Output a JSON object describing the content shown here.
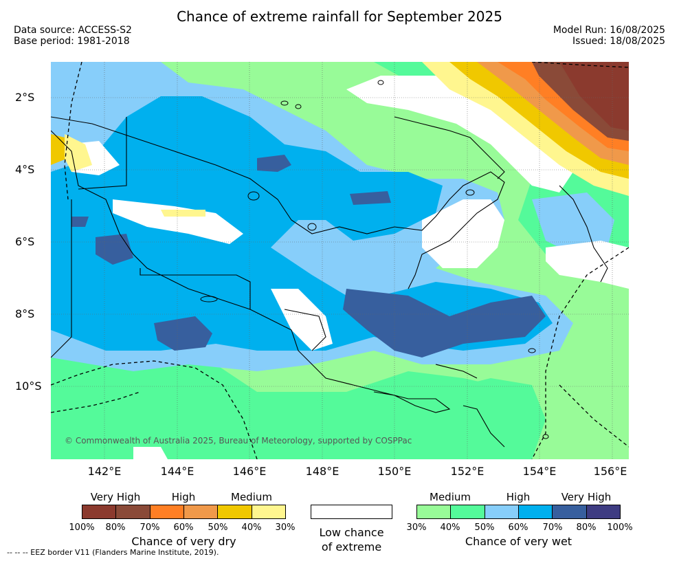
{
  "title": "Chance of extreme rainfall for September 2025",
  "data_source": "Data source: ACCESS-S2",
  "base_period": "Base period: 1981-2018",
  "model_run": "Model Run: 16/08/2025",
  "issued": "Issued: 18/08/2025",
  "map": {
    "lat_labels": [
      "2°S",
      "4°S",
      "6°S",
      "8°S",
      "10°S"
    ],
    "lon_labels": [
      "142°E",
      "144°E",
      "146°E",
      "148°E",
      "150°E",
      "152°E",
      "154°E",
      "156°E"
    ],
    "copyright": "© Commonwealth of Australia 2025, Bureau of Meteorology, supported by COSPPac"
  },
  "legend": {
    "dry": {
      "levels": [
        "Very High",
        "High",
        "Medium"
      ],
      "percents": [
        "100%",
        "80%",
        "70%",
        "60%",
        "50%",
        "40%",
        "30%"
      ],
      "colors": [
        "#8b3a2e",
        "#8a4a38",
        "#ff7f24",
        "#f0994a",
        "#f0c800",
        "#fff68f"
      ],
      "caption": "Chance of very dry"
    },
    "low": {
      "caption_line1": "Low chance",
      "caption_line2": "of extreme",
      "color": "#ffffff"
    },
    "wet": {
      "levels": [
        "Medium",
        "High",
        "Very High"
      ],
      "percents": [
        "30%",
        "40%",
        "50%",
        "60%",
        "70%",
        "80%",
        "100%"
      ],
      "colors": [
        "#98fb98",
        "#54fa9a",
        "#87cefa",
        "#00b0ee",
        "#375f9e",
        "#3e3c82"
      ],
      "caption": "Chance of very wet"
    }
  },
  "eez_note": "--  --  -- EEZ border V11 (Flanders Marine Institute, 2019)."
}
